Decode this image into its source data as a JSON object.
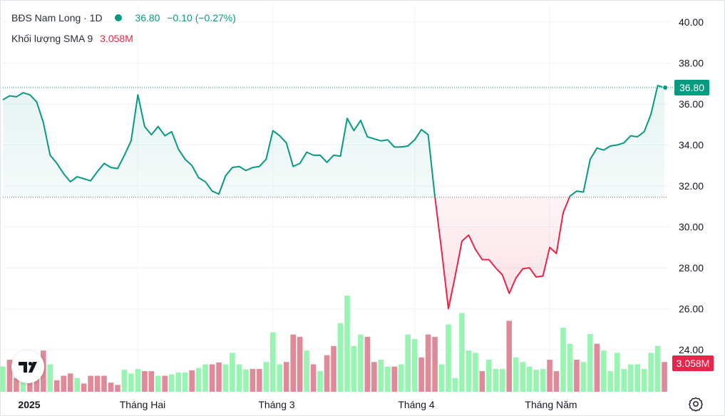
{
  "legend": {
    "symbol": "BĐS Nam Long",
    "interval": "1D",
    "price": "36.80",
    "change": "−0.10",
    "change_pct": "(−0.27%)",
    "volume_label": "Khối lượng SMA 9",
    "volume_value": "3.058M"
  },
  "price_axis": {
    "labels": [
      "40.00",
      "38.00",
      "36.00",
      "34.00",
      "32.00",
      "30.00",
      "28.00",
      "26.00",
      "24.00"
    ],
    "last_price_label": "36.80",
    "volume_label": "3.058M"
  },
  "time_axis": {
    "labels": [
      "2025",
      "Tháng Hai",
      "Tháng 3",
      "Tháng 4",
      "Tháng Năm"
    ]
  },
  "colors": {
    "up_line": "#089981",
    "down_line": "#e5254a",
    "volume_up": "#98f5b1",
    "volume_down": "#e08a99",
    "volume_label_bg": "#e5254a",
    "price_label_bg": "#089981"
  },
  "icons": {
    "logo": "tradingview-logo-icon",
    "settings": "settings-icon"
  },
  "chart_data": {
    "type": "area",
    "title": "BĐS Nam Long",
    "baseline": 31.45,
    "ylim": [
      22.2,
      40.8
    ],
    "y_ticks": [
      24,
      26,
      28,
      30,
      32,
      34,
      36,
      38,
      40
    ],
    "x_labels": [
      "2025",
      "Tháng Hai",
      "Tháng 3",
      "Tháng 4",
      "Tháng Năm"
    ],
    "series": [
      {
        "values": [
          36.2,
          36.4,
          36.35,
          36.55,
          36.45,
          36.1,
          35.1,
          33.5,
          33.1,
          32.6,
          32.2,
          32.45,
          32.35,
          32.25,
          32.7,
          33.1,
          32.9,
          32.85,
          33.5,
          34.2,
          36.45,
          34.9,
          34.5,
          34.9,
          34.45,
          34.65,
          33.8,
          33.3,
          33.0,
          32.4,
          32.2,
          31.75,
          31.6,
          32.5,
          32.9,
          32.95,
          32.75,
          32.9,
          32.95,
          33.3,
          34.7,
          34.45,
          34.1,
          32.95,
          33.1,
          33.65,
          33.5,
          33.5,
          33.15,
          33.5,
          33.45,
          35.3,
          34.7,
          35.2,
          34.4,
          34.3,
          34.2,
          34.25,
          33.9,
          33.9,
          33.95,
          34.25,
          34.75,
          34.5,
          31.45,
          28.8,
          26.0,
          27.6,
          29.3,
          29.6,
          28.9,
          28.4,
          28.4,
          28.0,
          27.65,
          26.75,
          27.5,
          27.95,
          28.0,
          27.55,
          27.6,
          29.0,
          28.7,
          30.7,
          31.5,
          31.75,
          31.7,
          33.3,
          33.85,
          33.75,
          33.95,
          34.0,
          34.1,
          34.45,
          34.4,
          34.65,
          35.5,
          36.9,
          36.8
        ]
      }
    ],
    "volume": [
      {
        "value": 5.5,
        "color": "up"
      },
      {
        "value": 7.0,
        "color": "down"
      },
      {
        "value": 3.0,
        "color": "down"
      },
      {
        "value": 2.5,
        "color": "up"
      },
      {
        "value": 2.0,
        "color": "down"
      },
      {
        "value": 3.5,
        "color": "down"
      },
      {
        "value": 9.0,
        "color": "down"
      },
      {
        "value": 6.0,
        "color": "up"
      },
      {
        "value": 2.5,
        "color": "down"
      },
      {
        "value": 3.5,
        "color": "down"
      },
      {
        "value": 4.0,
        "color": "down"
      },
      {
        "value": 3.0,
        "color": "up"
      },
      {
        "value": 1.8,
        "color": "down"
      },
      {
        "value": 3.5,
        "color": "down"
      },
      {
        "value": 3.5,
        "color": "down"
      },
      {
        "value": 3.5,
        "color": "down"
      },
      {
        "value": 2.0,
        "color": "down"
      },
      {
        "value": 1.5,
        "color": "down"
      },
      {
        "value": 4.8,
        "color": "up"
      },
      {
        "value": 4.0,
        "color": "up"
      },
      {
        "value": 5.0,
        "color": "up"
      },
      {
        "value": 4.5,
        "color": "down"
      },
      {
        "value": 4.5,
        "color": "down"
      },
      {
        "value": 3.5,
        "color": "up"
      },
      {
        "value": 3.5,
        "color": "down"
      },
      {
        "value": 3.8,
        "color": "up"
      },
      {
        "value": 4.2,
        "color": "up"
      },
      {
        "value": 4.2,
        "color": "up"
      },
      {
        "value": 4.7,
        "color": "down"
      },
      {
        "value": 5.2,
        "color": "up"
      },
      {
        "value": 6.0,
        "color": "up"
      },
      {
        "value": 6.0,
        "color": "down"
      },
      {
        "value": 6.4,
        "color": "down"
      },
      {
        "value": 6.0,
        "color": "up"
      },
      {
        "value": 8.5,
        "color": "up"
      },
      {
        "value": 6.0,
        "color": "up"
      },
      {
        "value": 4.9,
        "color": "up"
      },
      {
        "value": 5.0,
        "color": "down"
      },
      {
        "value": 5.0,
        "color": "down"
      },
      {
        "value": 6.5,
        "color": "up"
      },
      {
        "value": 13.0,
        "color": "up"
      },
      {
        "value": 6.0,
        "color": "up"
      },
      {
        "value": 6.5,
        "color": "down"
      },
      {
        "value": 12.5,
        "color": "down"
      },
      {
        "value": 12.0,
        "color": "down"
      },
      {
        "value": 9.0,
        "color": "up"
      },
      {
        "value": 6.0,
        "color": "down"
      },
      {
        "value": 4.5,
        "color": "up"
      },
      {
        "value": 8.0,
        "color": "down"
      },
      {
        "value": 10.0,
        "color": "down"
      },
      {
        "value": 15.0,
        "color": "up"
      },
      {
        "value": 21.0,
        "color": "up"
      },
      {
        "value": 10.0,
        "color": "up"
      },
      {
        "value": 12.5,
        "color": "up"
      },
      {
        "value": 12.0,
        "color": "down"
      },
      {
        "value": 6.5,
        "color": "down"
      },
      {
        "value": 7.0,
        "color": "up"
      },
      {
        "value": 5.5,
        "color": "up"
      },
      {
        "value": 5.5,
        "color": "down"
      },
      {
        "value": 6.0,
        "color": "up"
      },
      {
        "value": 12.5,
        "color": "up"
      },
      {
        "value": 11.5,
        "color": "up"
      },
      {
        "value": 7.5,
        "color": "down"
      },
      {
        "value": 12.5,
        "color": "down"
      },
      {
        "value": 12.0,
        "color": "down"
      },
      {
        "value": 6.0,
        "color": "up"
      },
      {
        "value": 14.7,
        "color": "up"
      },
      {
        "value": 3.0,
        "color": "up"
      },
      {
        "value": 17.2,
        "color": "up"
      },
      {
        "value": 9.0,
        "color": "up"
      },
      {
        "value": 8.5,
        "color": "up"
      },
      {
        "value": 4.5,
        "color": "down"
      },
      {
        "value": 7.0,
        "color": "up"
      },
      {
        "value": 5.0,
        "color": "up"
      },
      {
        "value": 5.0,
        "color": "up"
      },
      {
        "value": 15.5,
        "color": "down"
      },
      {
        "value": 7.5,
        "color": "up"
      },
      {
        "value": 6.5,
        "color": "up"
      },
      {
        "value": 5.5,
        "color": "up"
      },
      {
        "value": 4.8,
        "color": "up"
      },
      {
        "value": 5.0,
        "color": "up"
      },
      {
        "value": 7.0,
        "color": "down"
      },
      {
        "value": 4.5,
        "color": "down"
      },
      {
        "value": 14.0,
        "color": "up"
      },
      {
        "value": 10.5,
        "color": "up"
      },
      {
        "value": 7.0,
        "color": "down"
      },
      {
        "value": 6.5,
        "color": "up"
      },
      {
        "value": 12.6,
        "color": "up"
      },
      {
        "value": 10.5,
        "color": "down"
      },
      {
        "value": 9.0,
        "color": "up"
      },
      {
        "value": 4.5,
        "color": "up"
      },
      {
        "value": 8.5,
        "color": "up"
      },
      {
        "value": 5.0,
        "color": "up"
      },
      {
        "value": 6.0,
        "color": "up"
      },
      {
        "value": 6.0,
        "color": "up"
      },
      {
        "value": 5.0,
        "color": "up"
      },
      {
        "value": 8.5,
        "color": "up"
      },
      {
        "value": 10.0,
        "color": "up"
      },
      {
        "value": 6.5,
        "color": "down"
      }
    ],
    "grid": true
  }
}
